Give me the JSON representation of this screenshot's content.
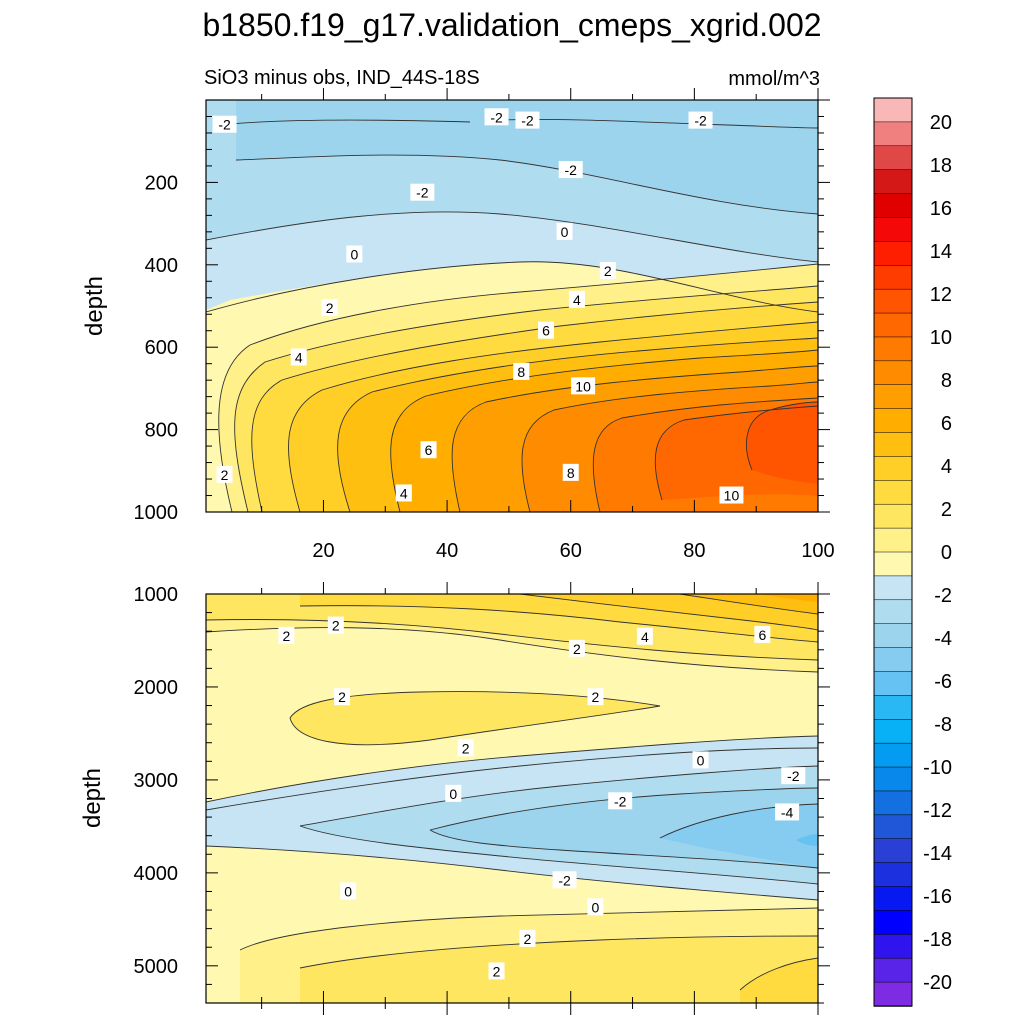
{
  "chart_data": {
    "type": "contour",
    "title": "b1850.f19_g17.validation_cmeps_xgrid.002",
    "subtitle": "SiO3 minus obs, IND_44S-18S",
    "units": "mmol/m^3",
    "colorbar": {
      "levels": [
        "20",
        "18",
        "16",
        "14",
        "12",
        "10",
        "8",
        "6",
        "4",
        "2",
        "0",
        "-2",
        "-4",
        "-6",
        "-8",
        "-10",
        "-12",
        "-14",
        "-16",
        "-18",
        "-20"
      ],
      "colors": [
        "#f8b8b8",
        "#f08080",
        "#e04848",
        "#d41818",
        "#e00000",
        "#f40808",
        "#ff1e00",
        "#ff3c00",
        "#ff5400",
        "#ff6800",
        "#ff7a00",
        "#ff8c00",
        "#ff9e00",
        "#ffae00",
        "#ffbf10",
        "#ffcf28",
        "#ffdb40",
        "#ffe660",
        "#fff08a",
        "#fff8b0",
        "#c6e4f4",
        "#b0dcf0",
        "#9cd4ee",
        "#86ccf0",
        "#66c2f2",
        "#2ab8f4",
        "#08b0f6",
        "#049cf0",
        "#0888ea",
        "#1470e0",
        "#2056d8",
        "#2a40d4",
        "#1c30e0",
        "#0818f0",
        "#0000ff",
        "#3014ee",
        "#5a24e8",
        "#7e2ce4"
      ]
    },
    "top_panel": {
      "ylabel": "depth",
      "xlim": [
        1,
        100
      ],
      "ylim": [
        0,
        1000
      ],
      "yticks": [
        "200",
        "400",
        "600",
        "800",
        "1000"
      ],
      "xticks": [
        "20",
        "40",
        "60",
        "80",
        "100"
      ],
      "contour_labels": [
        {
          "text": "-2",
          "x": 4,
          "y": 60
        },
        {
          "text": "-2",
          "x": 48,
          "y": 42
        },
        {
          "text": "-2",
          "x": 53,
          "y": 50
        },
        {
          "text": "-2",
          "x": 81,
          "y": 50
        },
        {
          "text": "-2",
          "x": 60,
          "y": 170
        },
        {
          "text": "-2",
          "x": 36,
          "y": 225
        },
        {
          "text": "0",
          "x": 59,
          "y": 320
        },
        {
          "text": "0",
          "x": 25,
          "y": 375
        },
        {
          "text": "2",
          "x": 66,
          "y": 415
        },
        {
          "text": "4",
          "x": 61,
          "y": 485
        },
        {
          "text": "2",
          "x": 21,
          "y": 505
        },
        {
          "text": "6",
          "x": 56,
          "y": 560
        },
        {
          "text": "4",
          "x": 16,
          "y": 625
        },
        {
          "text": "8",
          "x": 52,
          "y": 660
        },
        {
          "text": "10",
          "x": 62,
          "y": 695
        },
        {
          "text": "6",
          "x": 37,
          "y": 850
        },
        {
          "text": "2",
          "x": 4,
          "y": 910
        },
        {
          "text": "8",
          "x": 60,
          "y": 905
        },
        {
          "text": "4",
          "x": 33,
          "y": 955
        },
        {
          "text": "10",
          "x": 86,
          "y": 960
        }
      ]
    },
    "bottom_panel": {
      "ylabel": "depth",
      "xlim": [
        1,
        100
      ],
      "ylim": [
        1000,
        5400
      ],
      "yticks": [
        "1000",
        "2000",
        "3000",
        "4000",
        "5000"
      ],
      "contour_labels": [
        {
          "text": "2",
          "x": 14,
          "y": 1450
        },
        {
          "text": "2",
          "x": 22,
          "y": 1340
        },
        {
          "text": "4",
          "x": 72,
          "y": 1460
        },
        {
          "text": "6",
          "x": 91,
          "y": 1440
        },
        {
          "text": "2",
          "x": 61,
          "y": 1590
        },
        {
          "text": "2",
          "x": 23,
          "y": 2110
        },
        {
          "text": "2",
          "x": 64,
          "y": 2110
        },
        {
          "text": "2",
          "x": 43,
          "y": 2660
        },
        {
          "text": "0",
          "x": 81,
          "y": 2790
        },
        {
          "text": "-2",
          "x": 96,
          "y": 2960
        },
        {
          "text": "0",
          "x": 41,
          "y": 3150
        },
        {
          "text": "-2",
          "x": 68,
          "y": 3230
        },
        {
          "text": "-4",
          "x": 95,
          "y": 3350
        },
        {
          "text": "-2",
          "x": 59,
          "y": 4080
        },
        {
          "text": "0",
          "x": 24,
          "y": 4200
        },
        {
          "text": "0",
          "x": 64,
          "y": 4370
        },
        {
          "text": "2",
          "x": 53,
          "y": 4710
        },
        {
          "text": "2",
          "x": 48,
          "y": 5060
        }
      ]
    }
  }
}
